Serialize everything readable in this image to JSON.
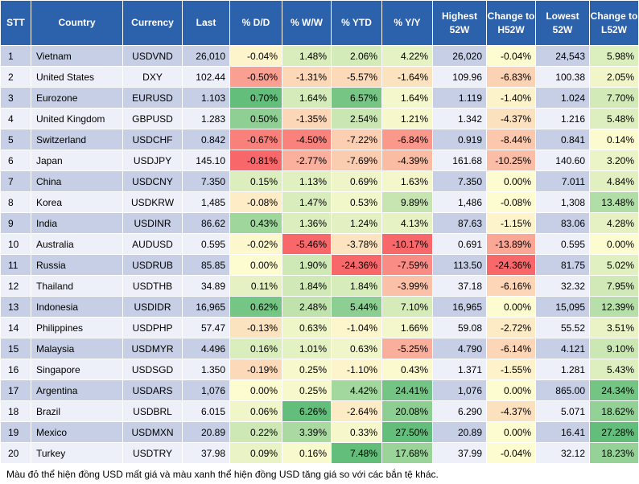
{
  "table": {
    "headers": [
      "STT",
      "Country",
      "Currency",
      "Last",
      "% D/D",
      "% W/W",
      "% YTD",
      "% Y/Y",
      "Highest 52W",
      "Change to H52W",
      "Lowest 52W",
      "Change to L52W"
    ],
    "rows": [
      {
        "stt": "1",
        "country": "Vietnam",
        "currency": "USDVND",
        "last": "26,010",
        "dd": "-0.04%",
        "ww": "1.48%",
        "ytd": "2.06%",
        "yy": "4.22%",
        "high": "26,020",
        "chg_h": "-0.04%",
        "low": "24,543",
        "chg_l": "5.98%"
      },
      {
        "stt": "2",
        "country": "United States",
        "currency": "DXY",
        "last": "102.44",
        "dd": "-0.50%",
        "ww": "-1.31%",
        "ytd": "-5.57%",
        "yy": "-1.64%",
        "high": "109.96",
        "chg_h": "-6.83%",
        "low": "100.38",
        "chg_l": "2.05%"
      },
      {
        "stt": "3",
        "country": "Eurozone",
        "currency": "EURUSD",
        "last": "1.103",
        "dd": "0.70%",
        "ww": "1.64%",
        "ytd": "6.57%",
        "yy": "1.64%",
        "high": "1.119",
        "chg_h": "-1.40%",
        "low": "1.024",
        "chg_l": "7.70%"
      },
      {
        "stt": "4",
        "country": "United Kingdom",
        "currency": "GBPUSD",
        "last": "1.283",
        "dd": "0.50%",
        "ww": "-1.35%",
        "ytd": "2.54%",
        "yy": "1.21%",
        "high": "1.342",
        "chg_h": "-4.37%",
        "low": "1.216",
        "chg_l": "5.48%"
      },
      {
        "stt": "5",
        "country": "Switzerland",
        "currency": "USDCHF",
        "last": "0.842",
        "dd": "-0.67%",
        "ww": "-4.50%",
        "ytd": "-7.22%",
        "yy": "-6.84%",
        "high": "0.919",
        "chg_h": "-8.44%",
        "low": "0.841",
        "chg_l": "0.14%"
      },
      {
        "stt": "6",
        "country": "Japan",
        "currency": "USDJPY",
        "last": "145.10",
        "dd": "-0.81%",
        "ww": "-2.77%",
        "ytd": "-7.69%",
        "yy": "-4.39%",
        "high": "161.68",
        "chg_h": "-10.25%",
        "low": "140.60",
        "chg_l": "3.20%"
      },
      {
        "stt": "7",
        "country": "China",
        "currency": "USDCNY",
        "last": "7.350",
        "dd": "0.15%",
        "ww": "1.13%",
        "ytd": "0.69%",
        "yy": "1.63%",
        "high": "7.350",
        "chg_h": "0.00%",
        "low": "7.011",
        "chg_l": "4.84%"
      },
      {
        "stt": "8",
        "country": "Korea",
        "currency": "USDKRW",
        "last": "1,485",
        "dd": "-0.08%",
        "ww": "1.47%",
        "ytd": "0.53%",
        "yy": "9.89%",
        "high": "1,486",
        "chg_h": "-0.08%",
        "low": "1,308",
        "chg_l": "13.48%"
      },
      {
        "stt": "9",
        "country": "India",
        "currency": "USDINR",
        "last": "86.62",
        "dd": "0.43%",
        "ww": "1.36%",
        "ytd": "1.24%",
        "yy": "4.13%",
        "high": "87.63",
        "chg_h": "-1.15%",
        "low": "83.06",
        "chg_l": "4.28%"
      },
      {
        "stt": "10",
        "country": "Australia",
        "currency": "AUDUSD",
        "last": "0.595",
        "dd": "-0.02%",
        "ww": "-5.46%",
        "ytd": "-3.78%",
        "yy": "-10.17%",
        "high": "0.691",
        "chg_h": "-13.89%",
        "low": "0.595",
        "chg_l": "0.00%"
      },
      {
        "stt": "11",
        "country": "Russia",
        "currency": "USDRUB",
        "last": "85.85",
        "dd": "0.00%",
        "ww": "1.90%",
        "ytd": "-24.36%",
        "yy": "-7.59%",
        "high": "113.50",
        "chg_h": "-24.36%",
        "low": "81.75",
        "chg_l": "5.02%"
      },
      {
        "stt": "12",
        "country": "Thailand",
        "currency": "USDTHB",
        "last": "34.89",
        "dd": "0.11%",
        "ww": "1.84%",
        "ytd": "1.84%",
        "yy": "-3.99%",
        "high": "37.18",
        "chg_h": "-6.16%",
        "low": "32.32",
        "chg_l": "7.95%"
      },
      {
        "stt": "13",
        "country": "Indonesia",
        "currency": "USDIDR",
        "last": "16,965",
        "dd": "0.62%",
        "ww": "2.48%",
        "ytd": "5.44%",
        "yy": "7.10%",
        "high": "16,965",
        "chg_h": "0.00%",
        "low": "15,095",
        "chg_l": "12.39%"
      },
      {
        "stt": "14",
        "country": "Philippines",
        "currency": "USDPHP",
        "last": "57.47",
        "dd": "-0.13%",
        "ww": "0.63%",
        "ytd": "-1.04%",
        "yy": "1.66%",
        "high": "59.08",
        "chg_h": "-2.72%",
        "low": "55.52",
        "chg_l": "3.51%"
      },
      {
        "stt": "15",
        "country": "Malaysia",
        "currency": "USDMYR",
        "last": "4.496",
        "dd": "0.16%",
        "ww": "1.01%",
        "ytd": "0.63%",
        "yy": "-5.25%",
        "high": "4.790",
        "chg_h": "-6.14%",
        "low": "4.121",
        "chg_l": "9.10%"
      },
      {
        "stt": "16",
        "country": "Singapore",
        "currency": "USDSGD",
        "last": "1.350",
        "dd": "-0.19%",
        "ww": "0.25%",
        "ytd": "-1.10%",
        "yy": "0.43%",
        "high": "1.371",
        "chg_h": "-1.55%",
        "low": "1.281",
        "chg_l": "5.43%"
      },
      {
        "stt": "17",
        "country": "Argentina",
        "currency": "USDARS",
        "last": "1,076",
        "dd": "0.00%",
        "ww": "0.25%",
        "ytd": "4.42%",
        "yy": "24.41%",
        "high": "1,076",
        "chg_h": "0.00%",
        "low": "865.00",
        "chg_l": "24.34%"
      },
      {
        "stt": "18",
        "country": "Brazil",
        "currency": "USDBRL",
        "last": "6.015",
        "dd": "0.06%",
        "ww": "6.26%",
        "ytd": "-2.64%",
        "yy": "20.08%",
        "high": "6.290",
        "chg_h": "-4.37%",
        "low": "5.071",
        "chg_l": "18.62%"
      },
      {
        "stt": "19",
        "country": "Mexico",
        "currency": "USDMXN",
        "last": "20.89",
        "dd": "0.22%",
        "ww": "3.39%",
        "ytd": "0.33%",
        "yy": "27.50%",
        "high": "20.89",
        "chg_h": "0.00%",
        "low": "16.41",
        "chg_l": "27.28%"
      },
      {
        "stt": "20",
        "country": "Turkey",
        "currency": "USDTRY",
        "last": "37.98",
        "dd": "0.09%",
        "ww": "0.16%",
        "ytd": "7.48%",
        "yy": "17.68%",
        "high": "37.99",
        "chg_h": "-0.04%",
        "low": "32.12",
        "chg_l": "18.23%"
      }
    ]
  },
  "footnote": "Màu đỏ thể hiện đồng USD mất giá và màu xanh thể hiện đồng USD tăng giá so với các bắn tệ khác.",
  "colors": {
    "header_bg": "#2c61ab",
    "row_odd": "#c6cfe6",
    "row_even": "#edf0f8",
    "neutral_yellow": "#fdfbd0",
    "red_max": "#f8686b",
    "green_max": "#63be7b"
  }
}
